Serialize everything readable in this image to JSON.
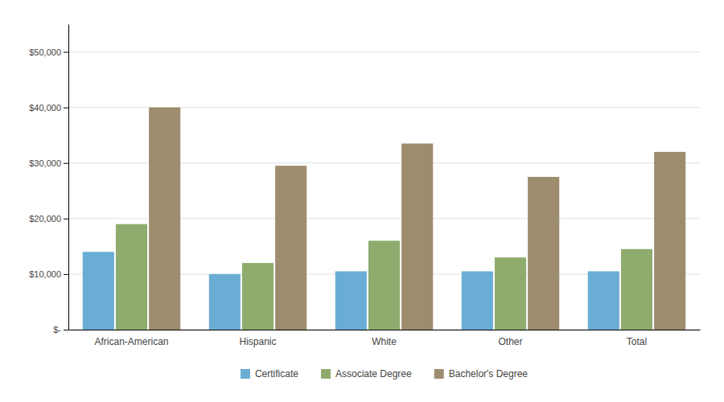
{
  "chart_data": {
    "type": "bar",
    "categories": [
      "African-American",
      "Hispanic",
      "White",
      "Other",
      "Total"
    ],
    "series": [
      {
        "name": "Certificate",
        "color": "#6aadd4",
        "values": [
          14000,
          10000,
          10500,
          10500,
          10500
        ]
      },
      {
        "name": "Associate Degree",
        "color": "#8fac6e",
        "values": [
          19000,
          12000,
          16000,
          13000,
          14500
        ]
      },
      {
        "name": "Bachelor's Degree",
        "color": "#9e8c6e",
        "values": [
          40000,
          29500,
          33500,
          27500,
          32000
        ]
      }
    ],
    "ylim": [
      0,
      55000
    ],
    "yticks": [
      {
        "value": 0,
        "label": "$-"
      },
      {
        "value": 10000,
        "label": "$10,000"
      },
      {
        "value": 20000,
        "label": "$20,000"
      },
      {
        "value": 30000,
        "label": "$30,000"
      },
      {
        "value": 40000,
        "label": "$40,000"
      },
      {
        "value": 50000,
        "label": "$50,000"
      }
    ],
    "grid": true,
    "legend": "bottom"
  }
}
